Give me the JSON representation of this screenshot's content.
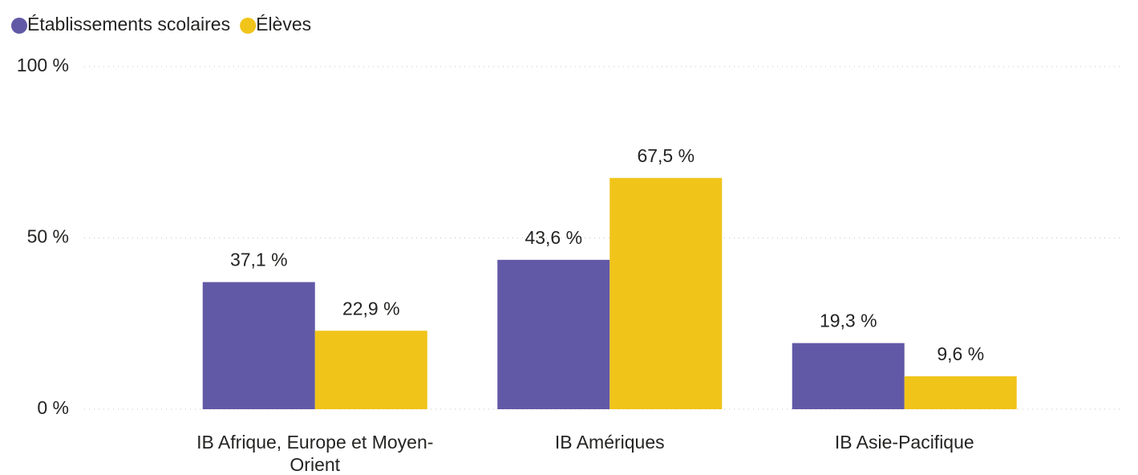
{
  "chart_data": {
    "type": "bar",
    "categories": [
      "IB Afrique, Europe et Moyen-Orient",
      "IB Amériques",
      "IB Asie-Pacifique"
    ],
    "series": [
      {
        "name": "Établissements scolaires",
        "color": "#6159a6",
        "values": [
          37.1,
          43.6,
          19.3
        ],
        "value_labels": [
          "37,1 %",
          "43,6 %",
          "19,3 %"
        ]
      },
      {
        "name": "Élèves",
        "color": "#f0c419",
        "values": [
          22.9,
          67.5,
          9.6
        ],
        "value_labels": [
          "22,9 %",
          "67,5 %",
          "9,6 %"
        ]
      }
    ],
    "ylim": [
      0,
      100
    ],
    "yticks": [
      {
        "value": 0,
        "label": "0 %"
      },
      {
        "value": 50,
        "label": "50 %"
      },
      {
        "value": 100,
        "label": "100 %"
      }
    ],
    "grid": true,
    "legend": "top-left"
  }
}
